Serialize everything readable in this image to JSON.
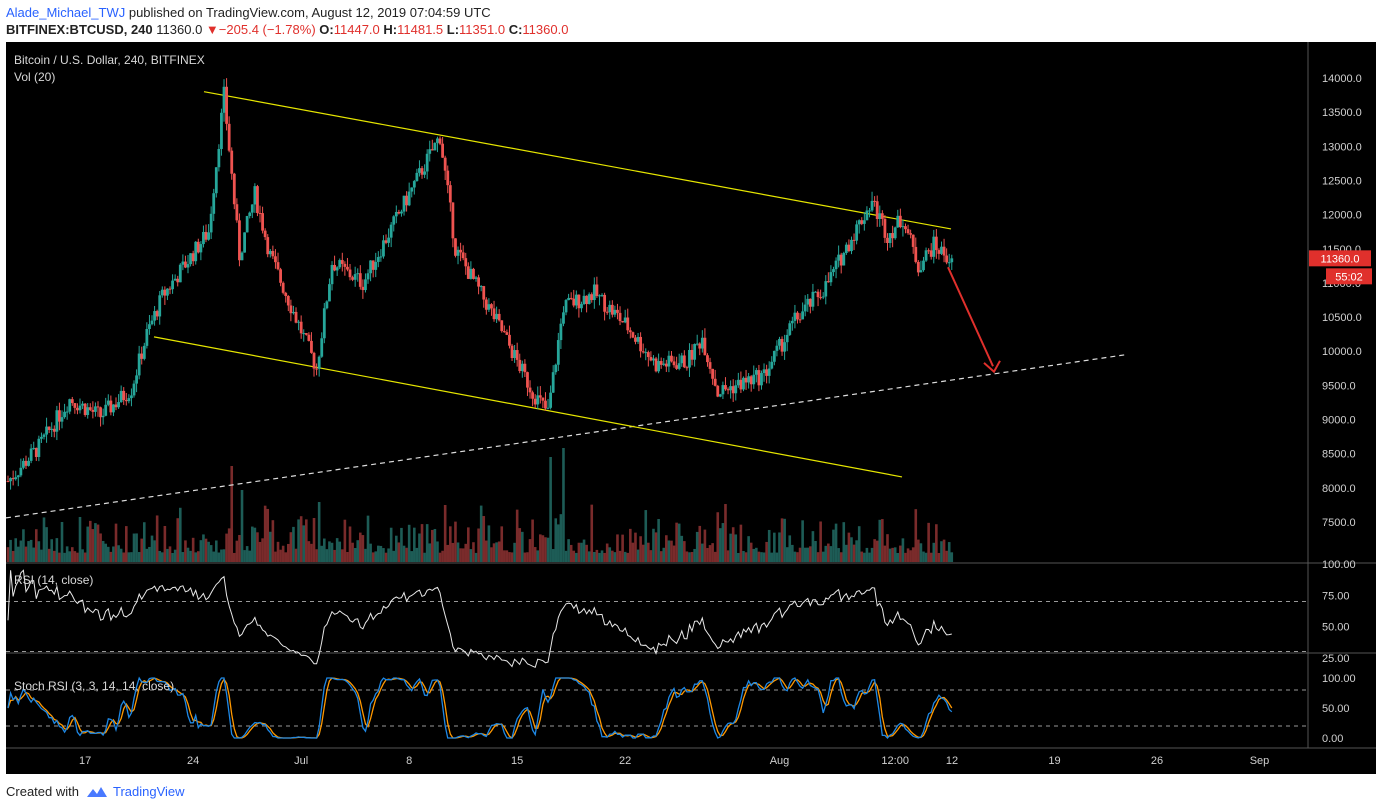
{
  "header": {
    "author": "Alade_Michael_TWJ",
    "published": "published on TradingView.com, August 12, 2019 07:04:59 UTC",
    "symbol": "BITFINEX:BTCUSD, 240",
    "last": "11360.0",
    "change": "−205.4 (−1.78%)",
    "o_label": "O:",
    "o_value": "11447.0",
    "h_label": "H:",
    "h_value": "11481.5",
    "l_label": "L:",
    "l_value": "11351.0",
    "c_label": "C:",
    "c_value": "11360.0"
  },
  "panes": {
    "main_title": "Bitcoin / U.S. Dollar, 240, BITFINEX",
    "vol_label": "Vol (20)",
    "rsi_label": "RSI (14, close)",
    "stoch_label": "Stoch RSI (3, 3, 14, 14, close)"
  },
  "price_badge": "11360.0",
  "countdown_badge": "55:02",
  "footer": {
    "created": "Created with",
    "brand": "TradingView"
  },
  "colors": {
    "up": "#26a69a",
    "down": "#ef5350",
    "channel": "#e6e600",
    "arrow": "#e0302c",
    "k_line": "#1e88e5",
    "d_line": "#ff9800"
  },
  "chart_data": [
    {
      "type": "candlestick",
      "title": "Bitcoin / U.S. Dollar, 240, BITFINEX",
      "price_axis_ticks": [
        "14000.0",
        "13500.0",
        "13000.0",
        "12500.0",
        "12000.0",
        "11500.0",
        "11000.0",
        "10500.0",
        "10000.0",
        "9500.0",
        "9000.0",
        "8500.0",
        "8000.0",
        "7500.0"
      ],
      "x_axis_ticks": [
        "17",
        "24",
        "Jul",
        "8",
        "15",
        "22",
        "Aug",
        "12:00",
        "12",
        "19",
        "26",
        "Sep"
      ],
      "ylim": [
        7450,
        14450
      ],
      "last_price": 11360.0,
      "approx_close_path": [
        {
          "date": "Jun 12",
          "close": 8100
        },
        {
          "date": "Jun 14",
          "close": 8600
        },
        {
          "date": "Jun 16",
          "close": 9300
        },
        {
          "date": "Jun 18",
          "close": 9050
        },
        {
          "date": "Jun 20",
          "close": 9450
        },
        {
          "date": "Jun 21",
          "close": 10250
        },
        {
          "date": "Jun 22",
          "close": 10800
        },
        {
          "date": "Jun 25",
          "close": 11750
        },
        {
          "date": "Jun 26",
          "close": 13750
        },
        {
          "date": "Jun 27",
          "close": 11400
        },
        {
          "date": "Jun 28",
          "close": 12300
        },
        {
          "date": "Jun 29",
          "close": 11400
        },
        {
          "date": "Jul 2",
          "close": 9750
        },
        {
          "date": "Jul 3",
          "close": 11300
        },
        {
          "date": "Jul 5",
          "close": 11000
        },
        {
          "date": "Jul 8",
          "close": 12300
        },
        {
          "date": "Jul 10",
          "close": 13150
        },
        {
          "date": "Jul 11",
          "close": 11500
        },
        {
          "date": "Jul 14",
          "close": 10300
        },
        {
          "date": "Jul 16",
          "close": 9400
        },
        {
          "date": "Jul 17",
          "close": 9100
        },
        {
          "date": "Jul 18",
          "close": 10650
        },
        {
          "date": "Jul 20",
          "close": 10850
        },
        {
          "date": "Jul 22",
          "close": 10400
        },
        {
          "date": "Jul 24",
          "close": 9800
        },
        {
          "date": "Jul 26",
          "close": 9850
        },
        {
          "date": "Jul 27",
          "close": 10200
        },
        {
          "date": "Jul 28",
          "close": 9400
        },
        {
          "date": "Jul 31",
          "close": 9650
        },
        {
          "date": "Aug 2",
          "close": 10450
        },
        {
          "date": "Aug 4",
          "close": 10950
        },
        {
          "date": "Aug 6",
          "close": 11800
        },
        {
          "date": "Aug 7",
          "close": 12200
        },
        {
          "date": "Aug 8",
          "close": 11700
        },
        {
          "date": "Aug 9",
          "close": 11950
        },
        {
          "date": "Aug 10",
          "close": 11250
        },
        {
          "date": "Aug 11",
          "close": 11550
        },
        {
          "date": "Aug 12",
          "close": 11360
        }
      ],
      "annotations": [
        "descending channel (yellow)",
        "dashed rising support line",
        "red arrow pointing down toward support"
      ]
    },
    {
      "type": "bar",
      "title": "Vol (20)",
      "note": "volume bars colored by candle direction"
    },
    {
      "type": "line",
      "title": "RSI (14, close)",
      "y_ticks": [
        "100.00",
        "75.00",
        "50.00",
        "25.00"
      ],
      "ylim": [
        0,
        100
      ],
      "levels": [
        70,
        30
      ],
      "last_value": 44
    },
    {
      "type": "line",
      "title": "Stoch RSI (3, 3, 14, 14, close)",
      "y_ticks": [
        "100.00",
        "50.00",
        "0.00"
      ],
      "ylim": [
        0,
        100
      ],
      "levels": [
        80,
        20
      ],
      "series": [
        {
          "name": "K"
        },
        {
          "name": "D"
        }
      ]
    }
  ]
}
